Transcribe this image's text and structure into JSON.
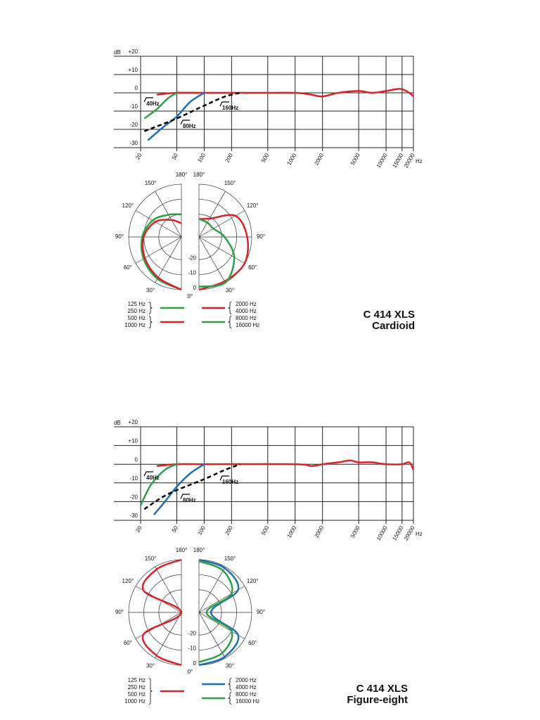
{
  "chart_data": [
    {
      "type": "line",
      "y_label": "dB",
      "x_label": "Hz",
      "xscale": "log",
      "xlim": [
        20,
        20000
      ],
      "ylim": [
        -30,
        20
      ],
      "xticks": [
        20,
        50,
        100,
        200,
        500,
        1000,
        2000,
        5000,
        10000,
        15000,
        20000
      ],
      "yticks": [
        {
          "value": 20,
          "label": "+20"
        },
        {
          "value": 10,
          "label": "+10"
        },
        0,
        -10,
        -20,
        -30
      ],
      "grid": true,
      "annotations": [
        "40Hz",
        "80Hz",
        "160Hz"
      ],
      "series": [
        {
          "color": "#d9232a",
          "x": [
            30,
            50,
            100,
            500,
            1000,
            1500,
            2000,
            3000,
            5000,
            7000,
            10000,
            13000,
            15000,
            18000,
            20000
          ],
          "values": [
            -1,
            0,
            0,
            0,
            0,
            -1,
            -2,
            0,
            1,
            0,
            1,
            2,
            2,
            0,
            -2
          ]
        },
        {
          "color": "#2f9e44",
          "x": [
            22,
            30,
            40,
            50
          ],
          "values": [
            -14,
            -9,
            -3,
            0
          ]
        },
        {
          "color": "#1f6fb5",
          "x": [
            24,
            35,
            50,
            70,
            100
          ],
          "values": [
            -26,
            -19,
            -13,
            -5,
            0
          ]
        },
        {
          "color": "#000000",
          "dash": true,
          "x": [
            22,
            50,
            100,
            170,
            250
          ],
          "values": [
            -21,
            -14,
            -7,
            -2,
            0
          ]
        }
      ]
    },
    {
      "type": "polar",
      "rlim": [
        -35,
        0
      ],
      "rticks": [
        0,
        -10,
        -20
      ],
      "angles": [
        {
          "value": 0,
          "label": "0°"
        },
        {
          "value": 30,
          "label": "30°"
        },
        {
          "value": 60,
          "label": "60°"
        },
        {
          "value": 90,
          "label": "90°"
        },
        {
          "value": 120,
          "label": "120°"
        },
        {
          "value": 150,
          "label": "150°"
        },
        {
          "value": 180,
          "label": "180°"
        }
      ],
      "series": [
        {
          "name": [
            "125 Hz",
            "250 Hz"
          ],
          "side": "left",
          "color": "#2f9e44",
          "values": [
            0,
            -3,
            -6,
            -9,
            -13,
            -18,
            -20
          ]
        },
        {
          "name": [
            "500 Hz",
            "1000 Hz"
          ],
          "side": "left",
          "color": "#d9232a",
          "values": [
            0,
            -4,
            -7,
            -10,
            -15,
            -22,
            -26
          ]
        },
        {
          "name": [
            "2000 Hz",
            "4000 Hz"
          ],
          "side": "right",
          "color": "#d9232a",
          "values": [
            0,
            -1,
            0,
            -3,
            -7,
            -21,
            -23
          ]
        },
        {
          "name": [
            "8000 Hz",
            "16000 Hz"
          ],
          "side": "right",
          "color": "#2f9e44",
          "values": [
            -2,
            0,
            -8,
            -18,
            -24,
            -24,
            -23
          ]
        }
      ]
    },
    {
      "type": "line",
      "y_label": "dB",
      "x_label": "Hz",
      "xscale": "log",
      "xlim": [
        20,
        20000
      ],
      "ylim": [
        -30,
        20
      ],
      "xticks": [
        20,
        50,
        100,
        200,
        500,
        1000,
        2000,
        5000,
        10000,
        15000,
        20000
      ],
      "yticks": [
        {
          "value": 20,
          "label": "+20"
        },
        {
          "value": 10,
          "label": "+10"
        },
        0,
        -10,
        -20,
        -30
      ],
      "grid": true,
      "annotations": [
        "40Hz",
        "80Hz",
        "160Hz"
      ],
      "series": [
        {
          "color": "#d9232a",
          "x": [
            30,
            50,
            100,
            1000,
            1500,
            2000,
            3000,
            4000,
            5000,
            7000,
            10000,
            15000,
            18000,
            20000
          ],
          "values": [
            -1,
            0,
            0,
            0,
            -1,
            0,
            1,
            2,
            1,
            1,
            0,
            0,
            1,
            -3
          ]
        },
        {
          "color": "#2f9e44",
          "x": [
            20,
            26,
            37,
            50
          ],
          "values": [
            -22,
            -11,
            -3,
            0
          ]
        },
        {
          "color": "#1f6fb5",
          "x": [
            28,
            37,
            50,
            70,
            100
          ],
          "values": [
            -27,
            -20,
            -12,
            -5,
            0
          ]
        },
        {
          "color": "#000000",
          "dash": true,
          "x": [
            22,
            40,
            100,
            170,
            250
          ],
          "values": [
            -24,
            -16,
            -8,
            -3,
            0
          ]
        }
      ]
    },
    {
      "type": "polar",
      "rlim": [
        -35,
        0
      ],
      "rticks": [
        0,
        -10,
        -20
      ],
      "angles": [
        {
          "value": 0,
          "label": "0°"
        },
        {
          "value": 30,
          "label": "30°"
        },
        {
          "value": 60,
          "label": "60°"
        },
        {
          "value": 90,
          "label": "90°"
        },
        {
          "value": 120,
          "label": "120°"
        },
        {
          "value": 150,
          "label": "150°"
        },
        {
          "value": 180,
          "label": "180°"
        }
      ],
      "series": [
        {
          "name": [
            "125 Hz",
            "250 Hz",
            "500 Hz",
            "1000 Hz"
          ],
          "side": "left",
          "color": "#d9232a",
          "values": [
            0,
            -2,
            -6,
            -35,
            -6,
            -2,
            0
          ]
        },
        {
          "name": [
            "2000 Hz",
            "4000 Hz"
          ],
          "side": "right",
          "color": "#1f6fb5",
          "values": [
            0,
            -1,
            -5,
            -27,
            -5,
            -1,
            0
          ]
        },
        {
          "name": [
            "8000 Hz",
            "16000 Hz"
          ],
          "side": "right",
          "color": "#2f9e44",
          "values": [
            -2,
            -4,
            -10,
            -30,
            -10,
            -3,
            -1
          ]
        }
      ]
    }
  ],
  "captions": [
    {
      "model": "C 414 XLS",
      "pattern": "Cardioid"
    },
    {
      "model": "C 414 XLS",
      "pattern": "Figure-eight"
    }
  ]
}
